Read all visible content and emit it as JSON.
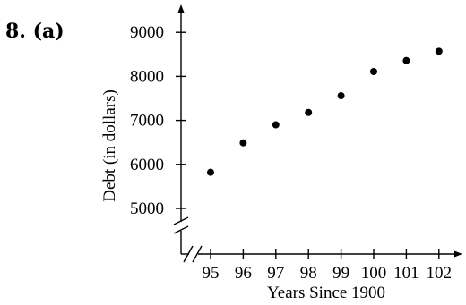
{
  "problem_label": "8.  (a)",
  "chart_data": {
    "type": "scatter",
    "title": "",
    "xlabel": "Years Since 1900",
    "ylabel": "Debt (in dollars)",
    "x": [
      95,
      96,
      97,
      98,
      99,
      100,
      101,
      102
    ],
    "y": [
      5820,
      6490,
      6900,
      7180,
      7560,
      8110,
      8360,
      8570
    ],
    "x_ticks": [
      "95",
      "96",
      "97",
      "98",
      "99",
      "100",
      "101",
      "102"
    ],
    "y_ticks": [
      "5000",
      "6000",
      "7000",
      "8000",
      "9000"
    ],
    "xlim": [
      94.1,
      102.7
    ],
    "ylim": [
      5000,
      9000
    ],
    "axis_breaks": true,
    "grid": false,
    "point_color": "#000000"
  }
}
